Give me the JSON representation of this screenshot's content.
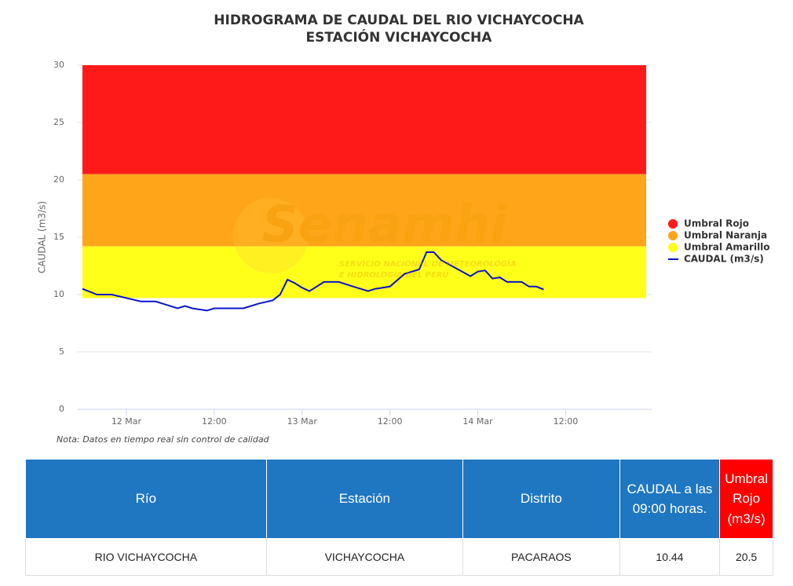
{
  "chart_data": {
    "type": "line",
    "title": [
      "HIDROGRAMA DE CAUDAL DEL RIO VICHAYCOCHA",
      "ESTACIÓN VICHAYCOCHA"
    ],
    "y_label": "CAUDAL (m3/s)",
    "note": "Nota: Datos en tiempo real sin control de calidad",
    "watermark": {
      "name": "Senamhi",
      "lines": [
        "SERVICIO NACIONAL DE METEOROLOGÍA",
        "E HIDROLOGÍA DEL PERÚ"
      ]
    },
    "ylim": [
      0,
      30
    ],
    "yticks": [
      0,
      5,
      10,
      15,
      20,
      25,
      30
    ],
    "xlim": [
      "11 Mar 17:15",
      "14 Mar 23:45"
    ],
    "xticks": [
      {
        "value": "12 Mar 00:00",
        "label": "12 Mar"
      },
      {
        "value": "12 Mar 12:00",
        "label": "12:00"
      },
      {
        "value": "13 Mar 00:00",
        "label": "13 Mar"
      },
      {
        "value": "13 Mar 12:00",
        "label": "12:00"
      },
      {
        "value": "14 Mar 00:00",
        "label": "14 Mar"
      },
      {
        "value": "14 Mar 12:00",
        "label": "12:00"
      }
    ],
    "grid": true,
    "legend": "right",
    "series": [
      {
        "name": "Umbral Rojo",
        "kind": "band",
        "color": "#ff1a1a",
        "x": [
          "11 Mar 18:00",
          "14 Mar 23:00"
        ],
        "range": [
          20.5,
          30
        ]
      },
      {
        "name": "Umbral Naranja",
        "kind": "band",
        "color": "#ffa51a",
        "x": [
          "11 Mar 18:00",
          "14 Mar 23:00"
        ],
        "range": [
          14.2,
          20.5
        ]
      },
      {
        "name": "Umbral Amarillo",
        "kind": "band",
        "color": "#ffff1a",
        "x": [
          "11 Mar 18:00",
          "14 Mar 23:00"
        ],
        "range": [
          9.7,
          14.2
        ]
      },
      {
        "name": "CAUDAL (m3/s)",
        "kind": "line",
        "color": "#0a14c8",
        "x": [
          "11 Mar 18:00",
          "11 Mar 20:00",
          "11 Mar 22:00",
          "12 Mar 00:00",
          "12 Mar 02:00",
          "12 Mar 04:00",
          "12 Mar 06:00",
          "12 Mar 07:00",
          "12 Mar 08:00",
          "12 Mar 09:00",
          "12 Mar 11:00",
          "12 Mar 12:00",
          "12 Mar 14:00",
          "12 Mar 16:00",
          "12 Mar 18:00",
          "12 Mar 20:00",
          "12 Mar 21:00",
          "12 Mar 22:00",
          "12 Mar 23:00",
          "13 Mar 00:00",
          "13 Mar 01:00",
          "13 Mar 02:00",
          "13 Mar 03:00",
          "13 Mar 05:00",
          "13 Mar 07:00",
          "13 Mar 09:00",
          "13 Mar 10:00",
          "13 Mar 12:00",
          "13 Mar 14:00",
          "13 Mar 16:00",
          "13 Mar 17:00",
          "13 Mar 18:00",
          "13 Mar 19:00",
          "13 Mar 21:00",
          "13 Mar 23:00",
          "14 Mar 00:00",
          "14 Mar 01:00",
          "14 Mar 02:00",
          "14 Mar 03:00",
          "14 Mar 04:00",
          "14 Mar 06:00",
          "14 Mar 07:00",
          "14 Mar 08:00",
          "14 Mar 09:00"
        ],
        "values": [
          10.5,
          10.0,
          10.0,
          9.7,
          9.4,
          9.4,
          9.0,
          8.8,
          9.0,
          8.8,
          8.6,
          8.8,
          8.8,
          8.8,
          9.2,
          9.5,
          10.0,
          11.3,
          11.0,
          10.6,
          10.3,
          10.7,
          11.1,
          11.1,
          10.7,
          10.3,
          10.5,
          10.7,
          11.8,
          12.2,
          13.7,
          13.7,
          13.0,
          12.3,
          11.6,
          12.0,
          12.1,
          11.4,
          11.5,
          11.1,
          11.1,
          10.7,
          10.7,
          10.44
        ]
      }
    ]
  },
  "table": {
    "header": [
      "Río",
      "Estación",
      "Distrito",
      "CAUDAL a las 09:00 horas.",
      "Umbral Rojo (m3/s)"
    ],
    "rows": [
      [
        "RIO VICHAYCOCHA",
        "VICHAYCOCHA",
        "PACARAOS",
        "10.44",
        "20.5"
      ]
    ]
  }
}
